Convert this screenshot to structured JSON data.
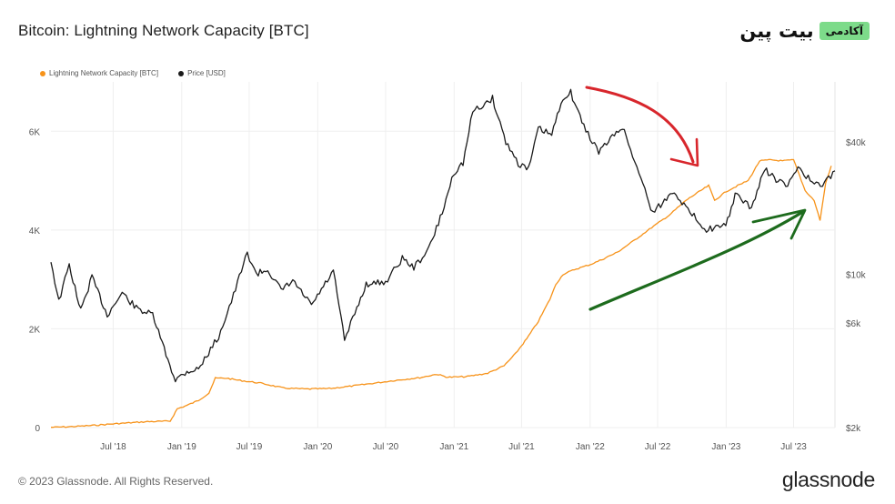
{
  "header": {
    "title": "Bitcoin: Lightning Network Capacity [BTC]",
    "brand_badge": "آکادمی",
    "brand_name": "بیت پین"
  },
  "legend": [
    {
      "label": "Lightning Network Capacity [BTC]",
      "color": "#f7931a"
    },
    {
      "label": "Price [USD]",
      "color": "#1a1a1a"
    }
  ],
  "footer": {
    "copyright": "© 2023 Glassnode. All Rights Reserved.",
    "logo": "glassnode"
  },
  "colors": {
    "capacity": "#f7931a",
    "price": "#1a1a1a",
    "red_arrow": "#d8262c",
    "green_arrow": "#1d6b1d"
  },
  "chart_data": {
    "type": "line",
    "title": "Bitcoin: Lightning Network Capacity [BTC]",
    "x_ticks": [
      "Jul '18",
      "Jan '19",
      "Jul '19",
      "Jan '20",
      "Jul '20",
      "Jan '21",
      "Jul '21",
      "Jan '22",
      "Jul '22",
      "Jan '23",
      "Jul '23"
    ],
    "x_range": [
      "2018-01-15",
      "2023-10-20"
    ],
    "y_left": {
      "ticks": [
        "0",
        "2K",
        "4K",
        "6K"
      ],
      "range": [
        0,
        7000
      ],
      "scale": "linear"
    },
    "y_right": {
      "ticks": [
        "$2k",
        "$6k",
        "$10k",
        "$40k"
      ],
      "range": [
        2000,
        75000
      ],
      "scale": "log"
    },
    "grid": true,
    "legend_position": "top-left",
    "series": [
      {
        "name": "Lightning Network Capacity [BTC]",
        "axis": "left",
        "points": [
          [
            "2018-01-15",
            5
          ],
          [
            "2018-03-01",
            15
          ],
          [
            "2018-05-01",
            40
          ],
          [
            "2018-07-01",
            75
          ],
          [
            "2018-08-01",
            90
          ],
          [
            "2018-10-01",
            120
          ],
          [
            "2018-12-01",
            130
          ],
          [
            "2018-12-20",
            380
          ],
          [
            "2019-01-15",
            450
          ],
          [
            "2019-02-15",
            550
          ],
          [
            "2019-03-15",
            700
          ],
          [
            "2019-04-01",
            1000
          ],
          [
            "2019-05-01",
            1000
          ],
          [
            "2019-06-01",
            960
          ],
          [
            "2019-08-01",
            900
          ],
          [
            "2019-10-01",
            800
          ],
          [
            "2019-12-01",
            780
          ],
          [
            "2020-02-01",
            790
          ],
          [
            "2020-04-01",
            840
          ],
          [
            "2020-06-01",
            900
          ],
          [
            "2020-08-01",
            960
          ],
          [
            "2020-10-01",
            1010
          ],
          [
            "2020-11-15",
            1080
          ],
          [
            "2020-12-15",
            1020
          ],
          [
            "2021-02-01",
            1030
          ],
          [
            "2021-04-01",
            1100
          ],
          [
            "2021-05-15",
            1250
          ],
          [
            "2021-06-15",
            1500
          ],
          [
            "2021-07-15",
            1800
          ],
          [
            "2021-08-15",
            2150
          ],
          [
            "2021-09-15",
            2600
          ],
          [
            "2021-10-01",
            2900
          ],
          [
            "2021-10-20",
            3100
          ],
          [
            "2021-11-20",
            3200
          ],
          [
            "2022-01-01",
            3300
          ],
          [
            "2022-02-01",
            3400
          ],
          [
            "2022-03-15",
            3550
          ],
          [
            "2022-05-01",
            3800
          ],
          [
            "2022-06-15",
            4050
          ],
          [
            "2022-08-01",
            4300
          ],
          [
            "2022-09-15",
            4600
          ],
          [
            "2022-10-15",
            4750
          ],
          [
            "2022-11-15",
            4900
          ],
          [
            "2022-12-01",
            4600
          ],
          [
            "2023-01-01",
            4780
          ],
          [
            "2023-02-01",
            4900
          ],
          [
            "2023-03-01",
            5000
          ],
          [
            "2023-04-01",
            5400
          ],
          [
            "2023-05-01",
            5420
          ],
          [
            "2023-06-01",
            5400
          ],
          [
            "2023-07-01",
            5420
          ],
          [
            "2023-08-01",
            4800
          ],
          [
            "2023-08-25",
            4600
          ],
          [
            "2023-09-10",
            4200
          ],
          [
            "2023-09-25",
            4950
          ],
          [
            "2023-10-10",
            5300
          ]
        ]
      },
      {
        "name": "Price [USD]",
        "axis": "right",
        "points": [
          [
            "2018-01-15",
            11500
          ],
          [
            "2018-02-05",
            7500
          ],
          [
            "2018-03-05",
            11000
          ],
          [
            "2018-04-05",
            6800
          ],
          [
            "2018-05-05",
            9700
          ],
          [
            "2018-06-15",
            6500
          ],
          [
            "2018-07-25",
            8200
          ],
          [
            "2018-09-01",
            7000
          ],
          [
            "2018-10-15",
            6500
          ],
          [
            "2018-11-20",
            4300
          ],
          [
            "2018-12-15",
            3300
          ],
          [
            "2019-01-15",
            3600
          ],
          [
            "2019-02-15",
            3700
          ],
          [
            "2019-04-10",
            5200
          ],
          [
            "2019-05-20",
            8000
          ],
          [
            "2019-06-26",
            12500
          ],
          [
            "2019-07-20",
            10000
          ],
          [
            "2019-08-20",
            10500
          ],
          [
            "2019-09-25",
            8400
          ],
          [
            "2019-10-26",
            9300
          ],
          [
            "2019-12-15",
            7200
          ],
          [
            "2020-02-12",
            10300
          ],
          [
            "2020-03-13",
            5000
          ],
          [
            "2020-04-15",
            7000
          ],
          [
            "2020-05-10",
            9000
          ],
          [
            "2020-07-01",
            9200
          ],
          [
            "2020-08-15",
            11800
          ],
          [
            "2020-09-15",
            10700
          ],
          [
            "2020-10-25",
            13000
          ],
          [
            "2020-11-30",
            19000
          ],
          [
            "2020-12-31",
            29000
          ],
          [
            "2021-01-25",
            32000
          ],
          [
            "2021-02-20",
            55000
          ],
          [
            "2021-03-15",
            58000
          ],
          [
            "2021-04-14",
            63000
          ],
          [
            "2021-05-20",
            40000
          ],
          [
            "2021-06-22",
            32000
          ],
          [
            "2021-07-20",
            30000
          ],
          [
            "2021-08-15",
            46000
          ],
          [
            "2021-09-20",
            43000
          ],
          [
            "2021-10-20",
            64000
          ],
          [
            "2021-11-10",
            67000
          ],
          [
            "2021-12-15",
            47000
          ],
          [
            "2022-01-24",
            36000
          ],
          [
            "2022-03-28",
            47000
          ],
          [
            "2022-05-12",
            29000
          ],
          [
            "2022-06-18",
            19000
          ],
          [
            "2022-08-15",
            24000
          ],
          [
            "2022-09-15",
            20000
          ],
          [
            "2022-11-09",
            16000
          ],
          [
            "2022-12-31",
            16500
          ],
          [
            "2023-01-25",
            23000
          ],
          [
            "2023-03-10",
            20000
          ],
          [
            "2023-04-14",
            30000
          ],
          [
            "2023-05-15",
            27000
          ],
          [
            "2023-06-15",
            25000
          ],
          [
            "2023-07-13",
            31000
          ],
          [
            "2023-08-20",
            26000
          ],
          [
            "2023-09-11",
            25000
          ],
          [
            "2023-10-20",
            29500
          ]
        ]
      }
    ],
    "annotations": [
      {
        "type": "arrow",
        "color": "red",
        "direction": "down-right"
      },
      {
        "type": "arrow",
        "color": "green",
        "direction": "up-right"
      }
    ]
  }
}
